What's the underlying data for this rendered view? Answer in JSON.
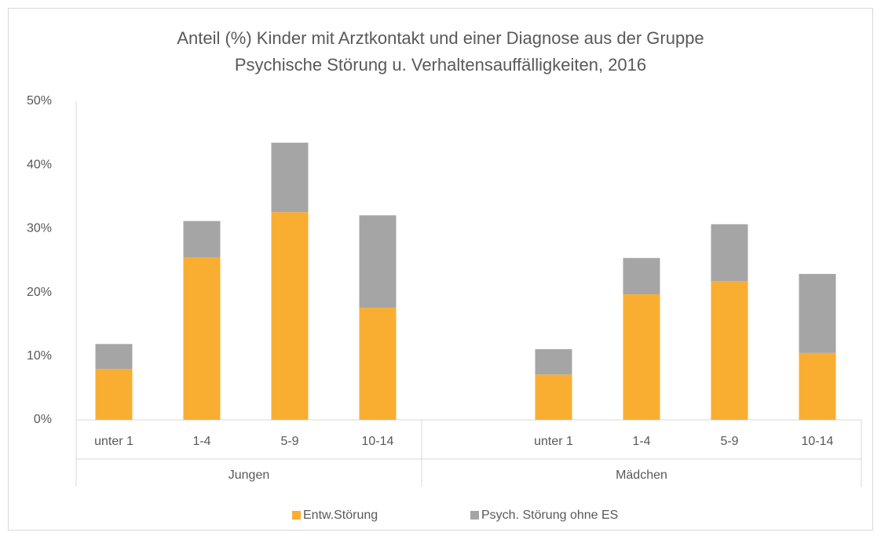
{
  "chart_data": {
    "type": "stacked_bar",
    "title": [
      "Anteil (%) Kinder mit Arztkontakt und einer Diagnose aus der Gruppe",
      "Psychische Störung u. Verhaltensauffälligkeiten, 2016"
    ],
    "categories": [
      "unter 1",
      "1-4",
      "5-9",
      "10-14",
      null,
      "unter 1",
      "1-4",
      "5-9",
      "10-14"
    ],
    "groups": [
      {
        "label": "Jungen",
        "span": 4
      },
      {
        "label": "Mädchen",
        "span": 5
      }
    ],
    "series": [
      {
        "name": "Entw.Störung",
        "color": "#F9AE32",
        "values": [
          8,
          25.5,
          32.6,
          17.6,
          null,
          7.1,
          19.7,
          21.8,
          10.5
        ]
      },
      {
        "name": "Psych. Störung ohne ES",
        "color": "#A5A5A5",
        "values": [
          3.9,
          5.7,
          10.9,
          14.5,
          null,
          4,
          5.7,
          8.9,
          12.4
        ]
      }
    ],
    "ylim": [
      0,
      50
    ],
    "yticks": [
      {
        "value": 0,
        "label": "0%"
      },
      {
        "value": 10,
        "label": "10%"
      },
      {
        "value": 20,
        "label": "20%"
      },
      {
        "value": 30,
        "label": "30%"
      },
      {
        "value": 40,
        "label": "40%"
      },
      {
        "value": 50,
        "label": "50%"
      }
    ],
    "grid": false
  }
}
